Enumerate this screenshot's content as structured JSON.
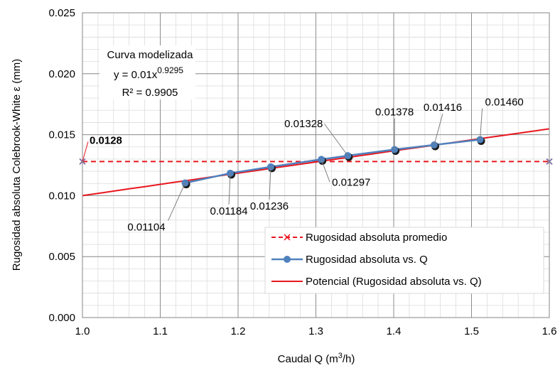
{
  "chart_data": {
    "type": "line",
    "xlabel": "Caudal Q  (m",
    "xlabel_sup": "3",
    "xlabel_end": "/h)",
    "ylabel": "Rugosidad absoluta Colebrook-White  ε (mm)",
    "xlim": [
      1.0,
      1.6
    ],
    "ylim": [
      0.0,
      0.025
    ],
    "x_ticks": [
      "1.0",
      "1.1",
      "1.2",
      "1.3",
      "1.4",
      "1.5",
      "1.6"
    ],
    "y_ticks": [
      "0.000",
      "0.005",
      "0.010",
      "0.015",
      "0.020",
      "0.025"
    ],
    "minor_grid": {
      "x_step": 0.02,
      "y_step": 0.001
    },
    "grid": true,
    "legend_position": "bottom-right",
    "series": [
      {
        "name": "Rugosidad absoluta promedio",
        "style": "dashed",
        "color": "#e8171f",
        "marker": "x",
        "x": [
          1.0,
          1.6
        ],
        "y": [
          0.0128,
          0.0128
        ]
      },
      {
        "name": "Rugosidad absoluta  vs. Q",
        "style": "solid",
        "color": "#4f81bd",
        "marker": "circle",
        "x": [
          1.132,
          1.19,
          1.242,
          1.307,
          1.341,
          1.401,
          1.452,
          1.511
        ],
        "y": [
          0.01104,
          0.01184,
          0.01236,
          0.01297,
          0.01328,
          0.01378,
          0.01416,
          0.0146
        ]
      },
      {
        "name": "Potencial (Rugosidad absoluta  vs. Q)",
        "style": "trendline",
        "color": "#e8171f",
        "coefficient": 0.01,
        "exponent": 0.9295
      }
    ],
    "data_labels": [
      "0.01104",
      "0.01184",
      "0.01236",
      "0.01297",
      "0.01328",
      "0.01378",
      "0.01416",
      "0.01460"
    ],
    "average_label": "0.0128",
    "annotation": {
      "line1": "Curva modelizada",
      "line2_prefix": "y = 0.01x",
      "line2_exp": "0.9295",
      "line3": "R² = 0.9905"
    }
  }
}
